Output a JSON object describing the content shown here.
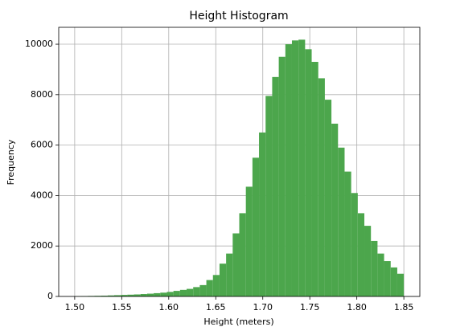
{
  "chart_data": {
    "type": "histogram",
    "title": "Height Histogram",
    "x_label": "Height (meters)",
    "y_label": "Frequency",
    "bins": [
      1.5,
      1.507,
      1.514,
      1.521,
      1.528,
      1.535,
      1.542,
      1.549,
      1.556,
      1.563,
      1.57,
      1.577,
      1.584,
      1.591,
      1.598,
      1.605,
      1.612,
      1.619,
      1.626,
      1.633,
      1.64,
      1.647,
      1.654,
      1.661,
      1.668,
      1.675,
      1.682,
      1.689,
      1.696,
      1.703,
      1.71,
      1.717,
      1.724,
      1.731,
      1.738,
      1.745,
      1.752,
      1.759,
      1.766,
      1.773,
      1.78,
      1.787,
      1.794,
      1.801,
      1.808,
      1.815,
      1.822,
      1.829,
      1.836,
      1.843,
      1.85
    ],
    "values": [
      10,
      15,
      20,
      25,
      30,
      40,
      50,
      60,
      70,
      80,
      95,
      110,
      130,
      150,
      180,
      220,
      260,
      300,
      370,
      450,
      650,
      850,
      1300,
      1700,
      2500,
      3300,
      4350,
      5500,
      6500,
      7950,
      8700,
      9500,
      10000,
      10150,
      10180,
      9800,
      9300,
      8650,
      7800,
      6850,
      5900,
      4950,
      4100,
      3300,
      2800,
      2200,
      1700,
      1400,
      1150,
      900
    ],
    "color": "#4ca64c",
    "xlim": [
      1.483,
      1.867
    ],
    "xticks": [
      {
        "value": 1.5,
        "label": "1.50"
      },
      1.55,
      {
        "value": 1.6,
        "label": "1.60"
      },
      1.65,
      {
        "value": 1.7,
        "label": "1.70"
      },
      1.75,
      {
        "value": 1.8,
        "label": "1.80"
      },
      1.85
    ],
    "ylim": [
      0,
      10670
    ],
    "yticks": [
      0,
      2000,
      4000,
      6000,
      8000,
      10000
    ],
    "grid": true
  }
}
